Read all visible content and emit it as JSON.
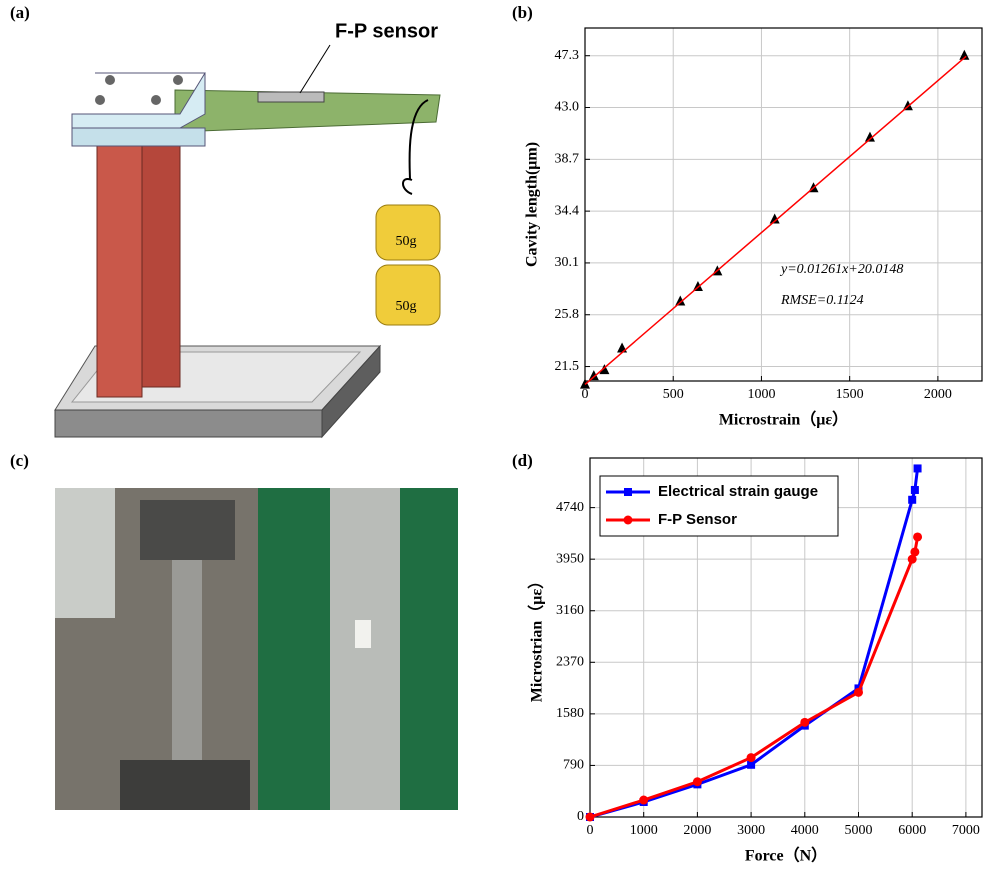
{
  "panel_labels": [
    "(a)",
    "(b)",
    "(c)",
    "(d)"
  ],
  "illustration": {
    "sensor": "F-P sensor",
    "weights": [
      "50g",
      "50g"
    ]
  },
  "chart_data": [
    {
      "type": "scatter",
      "xlabel": "Microstrain（με）",
      "ylabel": "Cavity length(μm)",
      "annotations": [
        "y=0.01261x+20.0148",
        "RMSE=0.1124"
      ],
      "xlim": [
        0,
        2250
      ],
      "ylim": [
        20.3,
        49.6
      ],
      "xticks": [
        0,
        500,
        1000,
        1500,
        2000
      ],
      "yticks": [
        21.5,
        25.8,
        30.1,
        34.4,
        38.7,
        {
          "value": 43,
          "label": "43.0"
        },
        47.3
      ],
      "grid": true,
      "series": [
        {
          "color": "#000000",
          "mode": "markers",
          "marker": "triangle",
          "x": [
            0,
            50,
            110,
            210,
            540,
            640,
            750,
            1075,
            1295,
            1615,
            1830,
            2150
          ],
          "values": [
            20.0,
            20.7,
            21.2,
            23.0,
            26.9,
            28.1,
            29.4,
            33.7,
            36.3,
            40.5,
            43.1,
            47.3
          ]
        },
        {
          "color": "#ff0000",
          "mode": "lines",
          "x": [
            0,
            2160
          ],
          "values": [
            20.01,
            47.25
          ]
        }
      ]
    },
    {
      "type": "line",
      "xlabel": "Force（N）",
      "ylabel": "Microstrian（με）",
      "xlim": [
        0,
        7300
      ],
      "ylim": [
        0,
        5500
      ],
      "xticks": [
        0,
        1000,
        2000,
        3000,
        4000,
        5000,
        6000,
        7000
      ],
      "yticks": [
        0,
        790,
        1580,
        2370,
        3160,
        3950,
        4740
      ],
      "grid": true,
      "legend": "upper left",
      "series": [
        {
          "name": "Electrical strain gauge",
          "color": "#0000ff",
          "marker": "square",
          "x": [
            0,
            1000,
            2000,
            3000,
            4000,
            5000,
            6000,
            6050,
            6100
          ],
          "values": [
            0,
            230,
            500,
            800,
            1400,
            1970,
            4860,
            5010,
            5340
          ]
        },
        {
          "name": "F-P Sensor",
          "color": "#ff0000",
          "marker": "circle",
          "x": [
            0,
            1000,
            2000,
            3000,
            4000,
            5000,
            6000,
            6050,
            6100
          ],
          "values": [
            0,
            260,
            540,
            910,
            1450,
            1910,
            3950,
            4060,
            4290
          ]
        }
      ]
    }
  ]
}
